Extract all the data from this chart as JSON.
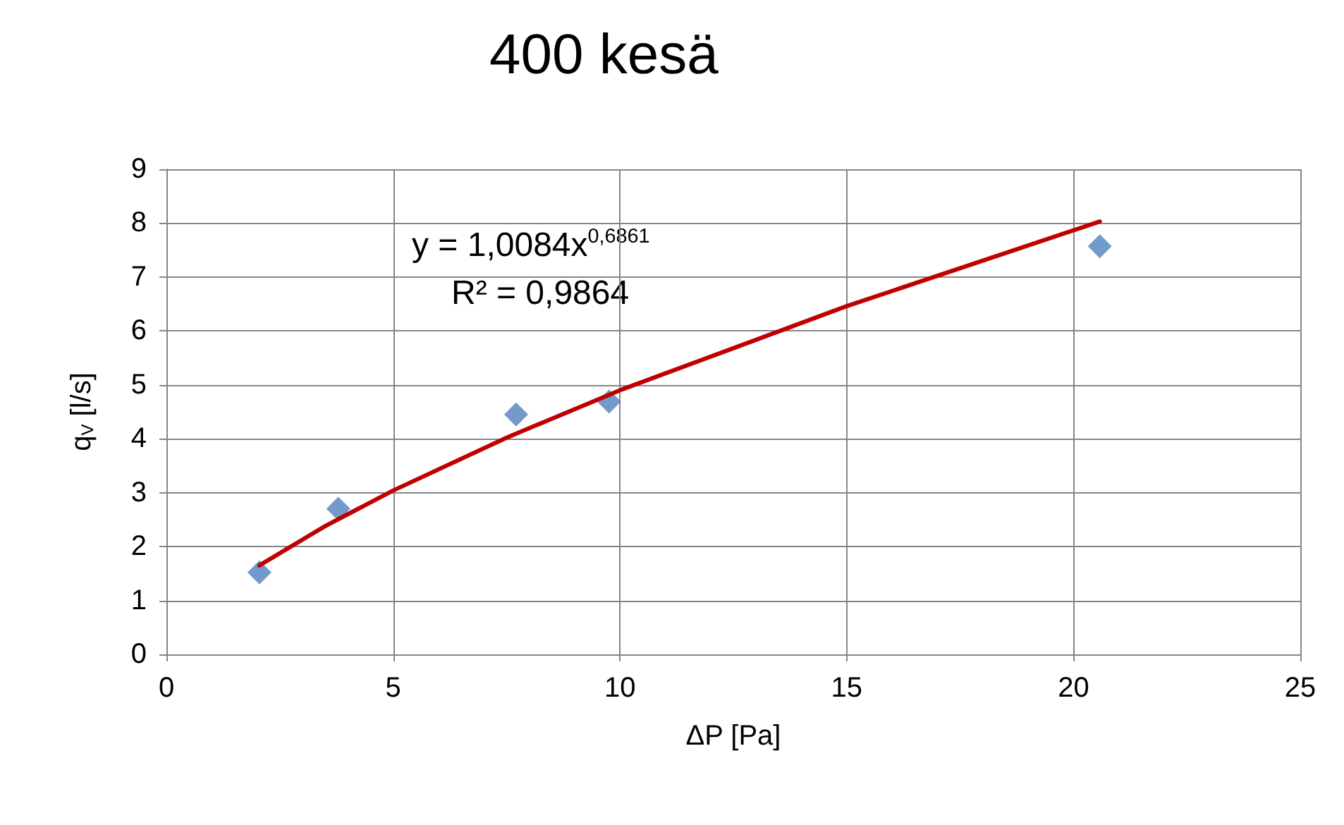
{
  "chart_data": {
    "type": "scatter",
    "title": "400 kesä",
    "xlabel": "ΔP [Pa]",
    "ylabel": "q$_{V}$ [l/s]",
    "annotations": [
      "y = 1,0084x$^{0,6861}$",
      "R² = 0,9864"
    ],
    "x": [
      2.05,
      3.79,
      7.71,
      9.76,
      20.58
    ],
    "series": [
      {
        "color": "#4f81bd",
        "values": [
          1.52,
          2.7,
          4.45,
          4.69,
          7.57
        ],
        "marker": "diamond"
      },
      {
        "type": "line",
        "color": "#c00000",
        "marker": "none",
        "x": [
          2.05,
          3.5,
          5,
          7.5,
          10,
          15,
          20.58
        ],
        "values": [
          1.65,
          2.38,
          3.04,
          4.02,
          4.9,
          6.46,
          8.03
        ]
      }
    ],
    "xlim": [
      0,
      25
    ],
    "xticks": [
      0,
      5,
      10,
      15,
      20,
      25
    ],
    "ylim": [
      0,
      9
    ],
    "yticks": [
      0,
      1,
      2,
      3,
      4,
      5,
      6,
      7,
      8,
      9
    ],
    "grid": true
  }
}
